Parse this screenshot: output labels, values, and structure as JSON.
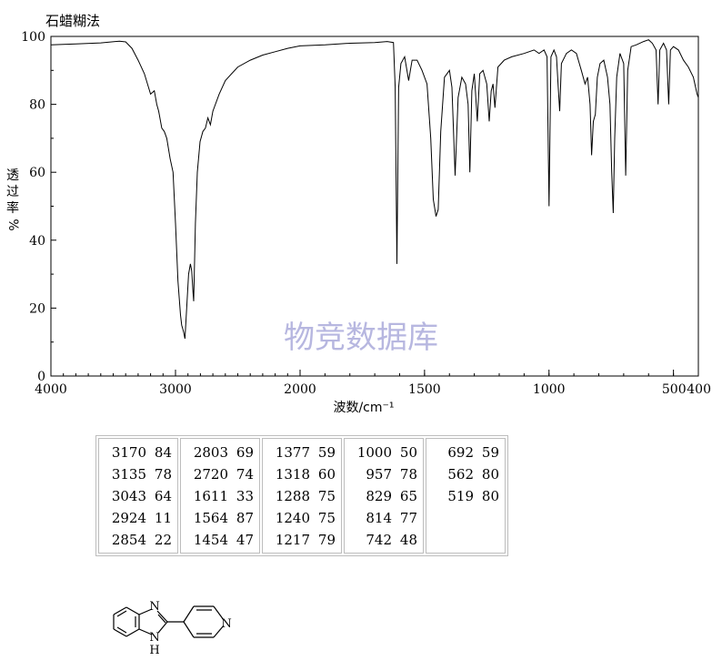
{
  "page": {
    "title": "石蜡糊法",
    "watermark": "物竞数据库"
  },
  "chart_data": {
    "type": "line",
    "title": "",
    "xlabel": "波数/cm⁻¹",
    "ylabel": "透过率%",
    "ylabel_chars": [
      "透",
      "过",
      "率",
      "%"
    ],
    "xlim": [
      4000,
      400
    ],
    "ylim": [
      0,
      100
    ],
    "x_ticks": [
      {
        "value": 4000,
        "label": "4000"
      },
      {
        "value": 3000,
        "label": "3000"
      },
      {
        "value": 2000,
        "label": "2000"
      },
      {
        "value": 1500,
        "label": "1500"
      },
      {
        "value": 1000,
        "label": "1000"
      },
      {
        "value": 500,
        "label": "500"
      },
      {
        "value": 400,
        "label": "400"
      }
    ],
    "y_ticks": [
      {
        "value": 0,
        "label": "0"
      },
      {
        "value": 20,
        "label": "20"
      },
      {
        "value": 40,
        "label": "40"
      },
      {
        "value": 60,
        "label": "60"
      },
      {
        "value": 80,
        "label": "80"
      },
      {
        "value": 100,
        "label": "100"
      }
    ],
    "axis_scale_note": "x axis is linear in two segments: 4000-2000 and 2000-400 (double scale)",
    "grid": false,
    "series": [
      {
        "values_xy": [
          [
            4000,
            97.5
          ],
          [
            3800,
            97.8
          ],
          [
            3600,
            98.1
          ],
          [
            3450,
            98.6
          ],
          [
            3400,
            98.4
          ],
          [
            3350,
            96.5
          ],
          [
            3300,
            93
          ],
          [
            3250,
            89
          ],
          [
            3200,
            83
          ],
          [
            3170,
            84
          ],
          [
            3150,
            80
          ],
          [
            3135,
            78
          ],
          [
            3110,
            73
          ],
          [
            3090,
            72
          ],
          [
            3070,
            70
          ],
          [
            3043,
            64
          ],
          [
            3020,
            60
          ],
          [
            3000,
            45
          ],
          [
            2980,
            28
          ],
          [
            2960,
            18
          ],
          [
            2950,
            15
          ],
          [
            2935,
            13
          ],
          [
            2924,
            11
          ],
          [
            2910,
            20
          ],
          [
            2895,
            30
          ],
          [
            2880,
            33
          ],
          [
            2870,
            31
          ],
          [
            2860,
            25
          ],
          [
            2854,
            22
          ],
          [
            2840,
            45
          ],
          [
            2825,
            60
          ],
          [
            2803,
            69
          ],
          [
            2780,
            72
          ],
          [
            2760,
            73
          ],
          [
            2740,
            76
          ],
          [
            2720,
            74
          ],
          [
            2700,
            78
          ],
          [
            2650,
            83
          ],
          [
            2600,
            87
          ],
          [
            2500,
            91
          ],
          [
            2400,
            93
          ],
          [
            2300,
            94.5
          ],
          [
            2200,
            95.5
          ],
          [
            2100,
            96.5
          ],
          [
            2000,
            97.2
          ],
          [
            1900,
            97.5
          ],
          [
            1800,
            98
          ],
          [
            1700,
            98.2
          ],
          [
            1650,
            98.5
          ],
          [
            1625,
            98.2
          ],
          [
            1618,
            85
          ],
          [
            1611,
            33
          ],
          [
            1604,
            85
          ],
          [
            1595,
            92
          ],
          [
            1580,
            94
          ],
          [
            1564,
            87
          ],
          [
            1550,
            93
          ],
          [
            1530,
            93
          ],
          [
            1510,
            90
          ],
          [
            1490,
            86
          ],
          [
            1475,
            70
          ],
          [
            1465,
            52
          ],
          [
            1454,
            47
          ],
          [
            1445,
            49
          ],
          [
            1435,
            72
          ],
          [
            1420,
            88
          ],
          [
            1400,
            90
          ],
          [
            1390,
            85
          ],
          [
            1377,
            59
          ],
          [
            1365,
            82
          ],
          [
            1350,
            88
          ],
          [
            1335,
            86
          ],
          [
            1325,
            80
          ],
          [
            1318,
            60
          ],
          [
            1310,
            84
          ],
          [
            1300,
            89
          ],
          [
            1288,
            75
          ],
          [
            1278,
            89
          ],
          [
            1265,
            90
          ],
          [
            1250,
            86
          ],
          [
            1240,
            75
          ],
          [
            1232,
            84
          ],
          [
            1225,
            86
          ],
          [
            1217,
            79
          ],
          [
            1205,
            91
          ],
          [
            1180,
            93
          ],
          [
            1150,
            94
          ],
          [
            1100,
            95
          ],
          [
            1060,
            96
          ],
          [
            1040,
            95
          ],
          [
            1020,
            96
          ],
          [
            1008,
            94
          ],
          [
            1000,
            50
          ],
          [
            992,
            94
          ],
          [
            980,
            96
          ],
          [
            970,
            94
          ],
          [
            963,
            85
          ],
          [
            957,
            78
          ],
          [
            950,
            92
          ],
          [
            930,
            95
          ],
          [
            910,
            96
          ],
          [
            890,
            95
          ],
          [
            870,
            90
          ],
          [
            855,
            86
          ],
          [
            845,
            88
          ],
          [
            835,
            80
          ],
          [
            829,
            65
          ],
          [
            822,
            75
          ],
          [
            814,
            77
          ],
          [
            806,
            88
          ],
          [
            795,
            92
          ],
          [
            780,
            93
          ],
          [
            765,
            88
          ],
          [
            755,
            80
          ],
          [
            748,
            60
          ],
          [
            742,
            48
          ],
          [
            736,
            70
          ],
          [
            728,
            88
          ],
          [
            715,
            95
          ],
          [
            700,
            92
          ],
          [
            692,
            59
          ],
          [
            684,
            90
          ],
          [
            670,
            97
          ],
          [
            650,
            97.5
          ],
          [
            620,
            98.5
          ],
          [
            600,
            99
          ],
          [
            585,
            98
          ],
          [
            570,
            96
          ],
          [
            562,
            80
          ],
          [
            555,
            96
          ],
          [
            540,
            98
          ],
          [
            528,
            96
          ],
          [
            519,
            80
          ],
          [
            512,
            96
          ],
          [
            500,
            97
          ],
          [
            480,
            96
          ],
          [
            460,
            93
          ],
          [
            440,
            91
          ],
          [
            420,
            88
          ],
          [
            405,
            83
          ],
          [
            400,
            82
          ]
        ]
      }
    ]
  },
  "peak_table": {
    "columns": [
      [
        [
          "3170",
          "84"
        ],
        [
          "3135",
          "78"
        ],
        [
          "3043",
          "64"
        ],
        [
          "2924",
          "11"
        ],
        [
          "2854",
          "22"
        ]
      ],
      [
        [
          "2803",
          "69"
        ],
        [
          "2720",
          "74"
        ],
        [
          "1611",
          "33"
        ],
        [
          "1564",
          "87"
        ],
        [
          "1454",
          "47"
        ]
      ],
      [
        [
          "1377",
          "59"
        ],
        [
          "1318",
          "60"
        ],
        [
          "1288",
          "75"
        ],
        [
          "1240",
          "75"
        ],
        [
          "1217",
          "79"
        ]
      ],
      [
        [
          "1000",
          "50"
        ],
        [
          "957",
          "78"
        ],
        [
          "829",
          "65"
        ],
        [
          "814",
          "77"
        ],
        [
          "742",
          "48"
        ]
      ],
      [
        [
          "692",
          "59"
        ],
        [
          "562",
          "80"
        ],
        [
          "519",
          "80"
        ]
      ]
    ]
  },
  "structure": {
    "atom_labels": {
      "n_top": "N",
      "n_bottom": "N",
      "h": "H",
      "n_pyridine": "N"
    }
  }
}
